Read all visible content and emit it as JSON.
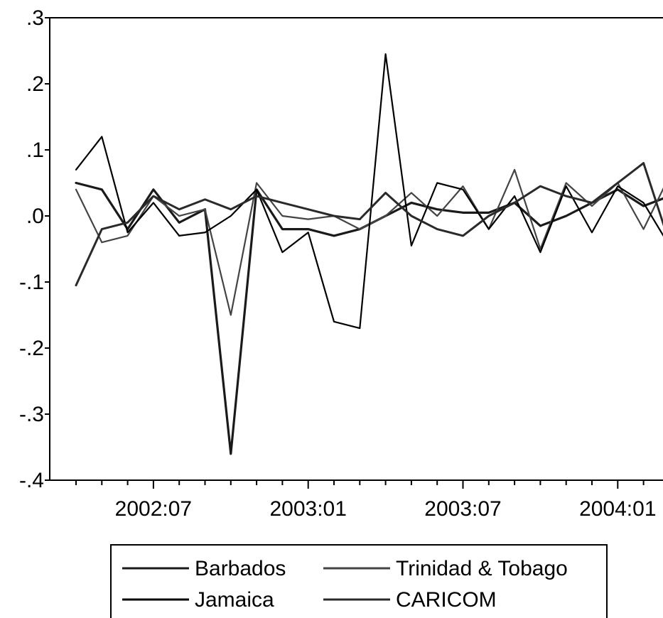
{
  "chart_data": {
    "type": "line",
    "x": [
      "2002:04",
      "2002:05",
      "2002:06",
      "2002:07",
      "2002:08",
      "2002:09",
      "2002:10",
      "2002:11",
      "2002:12",
      "2003:01",
      "2003:02",
      "2003:03",
      "2003:04",
      "2003:05",
      "2003:06",
      "2003:07",
      "2003:08",
      "2003:09",
      "2003:10",
      "2003:11",
      "2003:12",
      "2004:01",
      "2004:02",
      "2004:03"
    ],
    "x_ticks": [
      "2002:07",
      "2003:01",
      "2003:07",
      "2004:01"
    ],
    "y_ticks": [
      0.3,
      0.2,
      0.1,
      0.0,
      -0.1,
      -0.2,
      -0.3,
      -0.4
    ],
    "y_tick_labels": [
      ".3",
      ".2",
      ".1",
      ".0",
      "-.1",
      "-.2",
      "-.3",
      "-.4"
    ],
    "ylim": [
      -0.4,
      0.3
    ],
    "grid": false,
    "legend_position": "bottom-center",
    "series": [
      {
        "name": "Barbados",
        "color": "#1a1a1a",
        "width": 3.2,
        "values": [
          0.05,
          0.04,
          -0.02,
          0.04,
          -0.01,
          0.01,
          -0.36,
          0.04,
          -0.02,
          -0.02,
          -0.03,
          -0.02,
          0.0,
          0.02,
          0.01,
          0.005,
          0.005,
          0.02,
          -0.015,
          0.0,
          0.02,
          0.04,
          0.015,
          0.03
        ]
      },
      {
        "name": "Trinidad & Tobago",
        "color": "#444444",
        "width": 2.2,
        "values": [
          0.04,
          -0.04,
          -0.03,
          0.03,
          0.0,
          0.01,
          -0.15,
          0.05,
          0.0,
          -0.005,
          0.0,
          -0.02,
          0.0,
          0.035,
          0.0,
          0.045,
          -0.02,
          0.07,
          -0.05,
          0.05,
          0.015,
          0.05,
          -0.02,
          0.06
        ]
      },
      {
        "name": "Jamaica",
        "color": "#000000",
        "width": 2.2,
        "values": [
          0.07,
          0.12,
          -0.025,
          0.02,
          -0.03,
          -0.025,
          0.0,
          0.04,
          -0.055,
          -0.025,
          -0.16,
          -0.17,
          0.245,
          -0.045,
          0.05,
          0.04,
          -0.02,
          0.03,
          -0.055,
          0.045,
          -0.025,
          0.045,
          0.02,
          -0.045
        ]
      },
      {
        "name": "CARICOM",
        "color": "#2a2a2a",
        "width": 3.0,
        "values": [
          -0.105,
          -0.02,
          -0.01,
          0.03,
          0.01,
          0.025,
          0.01,
          0.03,
          0.02,
          0.01,
          0.0,
          -0.005,
          0.035,
          0.0,
          -0.02,
          -0.03,
          0.0,
          0.02,
          0.045,
          0.03,
          0.02,
          0.05,
          0.08,
          -0.04
        ]
      }
    ]
  }
}
